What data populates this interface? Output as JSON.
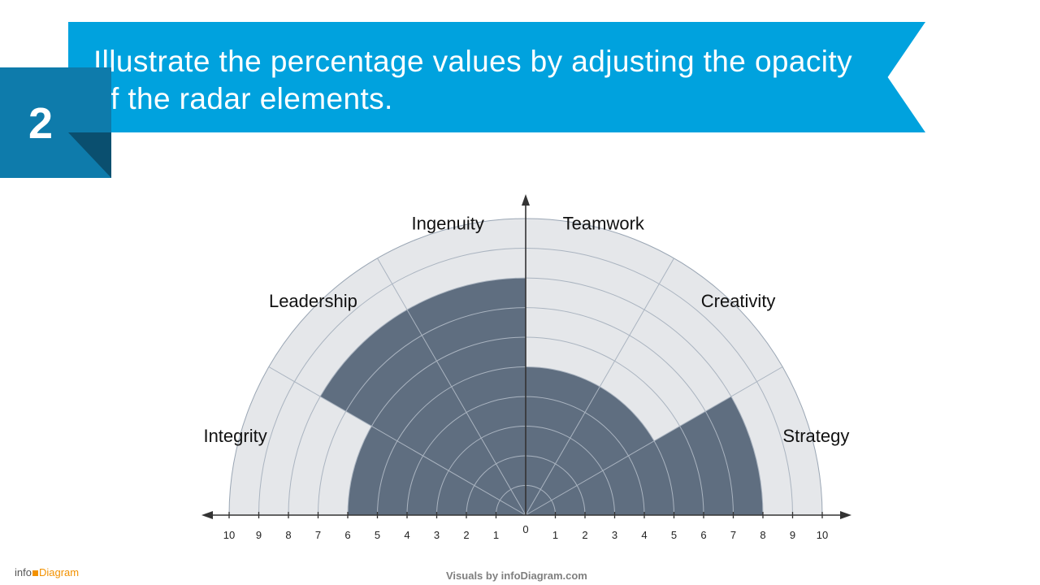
{
  "slide": {
    "number": "2",
    "heading": "Illustrate the percentage values by adjusting the opacity of the radar elements."
  },
  "colors": {
    "banner": "#00a2de",
    "number_block": "#0e7bab",
    "number_fold": "#0a4f6f",
    "filled": "#5f6e80",
    "empty": "#e5e7ea",
    "ring_line": "#aab4c0",
    "axis": "#333333"
  },
  "chart_data": {
    "type": "polar-bar",
    "categories": [
      "Integrity",
      "Leadership",
      "Ingenuity",
      "Teamwork",
      "Creativity",
      "Strategy"
    ],
    "values": [
      6,
      8,
      8,
      5,
      5,
      8
    ],
    "rmax": 10,
    "x_ticks_left": [
      "10",
      "9",
      "8",
      "7",
      "6",
      "5",
      "4",
      "3",
      "2",
      "1"
    ],
    "x_tick_center": "0",
    "x_ticks_right": [
      "1",
      "2",
      "3",
      "4",
      "5",
      "6",
      "7",
      "8",
      "9",
      "10"
    ]
  },
  "footer": {
    "brand_left_a": "info",
    "brand_left_b": "Diagram",
    "credit": "Visuals by infoDiagram.com"
  }
}
